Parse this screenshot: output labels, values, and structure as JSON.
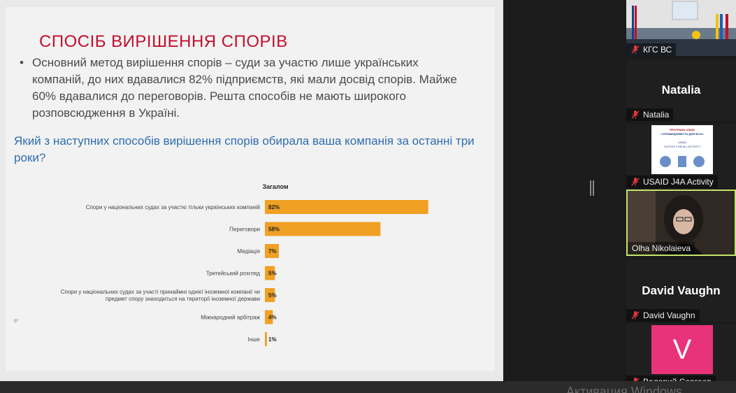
{
  "slide": {
    "title": "СПОСІБ ВИРІШЕННЯ СПОРІВ",
    "bullet": "Основний метод вирішення спорів – суди за участю лише українських компаній, до них вдавалися 82% підприємств, які мали досвід спорів. Майже 60% вдавалися до переговорів. Решта способів не мають широкого розповсюдження в Україні.",
    "question": "Який з наступних способів вирішення спорів обирала ваша компанія за останні три роки?",
    "left_mark": "8*"
  },
  "chart_data": {
    "type": "bar",
    "orientation": "horizontal",
    "title": "Загалом",
    "categories": [
      "Спори у національних судах за участю тільки українських компаній",
      "Переговори",
      "Медіація",
      "Третейський розгляд",
      "Спори у національних судах за участі принаймні однієї іноземної компанії чи предмет спору знаходиться на території іноземної держави",
      "Міжнародний арбітраж",
      "Інше"
    ],
    "values": [
      82,
      58,
      7,
      5,
      5,
      4,
      1
    ],
    "value_labels": [
      "82%",
      "58%",
      "7%",
      "5%",
      "5%",
      "4%",
      "1%"
    ],
    "xlim": [
      0,
      100
    ],
    "bar_color": "#f0a023",
    "grid": false
  },
  "participants": [
    {
      "name": "КГС ВС",
      "muted": true,
      "video": "room"
    },
    {
      "name": "Natalia",
      "display": "Natalia",
      "muted": true,
      "video": "off"
    },
    {
      "name": "USAID J4A Activity",
      "muted": true,
      "video": "poster",
      "poster": {
        "line1": "ПРОГРАМА USAID",
        "line2": "«СПРАВЕДЛИВІСТЬ ДЛЯ ВСІХ»",
        "line3": "USAID",
        "line4": "JUSTICE FOR ALL ACTIVITY"
      }
    },
    {
      "name": "Olha Nikolaieva",
      "muted": false,
      "video": "camera",
      "active_speaker": true
    },
    {
      "name": "David Vaughn",
      "display": "David Vaughn",
      "muted": true,
      "video": "off"
    },
    {
      "name": "Валерий Сергеев",
      "muted": true,
      "video": "avatar",
      "avatar_letter": "V",
      "avatar_color": "#e8337a"
    }
  ],
  "watermark": "Активация Windows",
  "colors": {
    "title_red": "#c0102e",
    "question_blue": "#2e6db0",
    "speaker_border": "#c5e36b",
    "mic_muted": "#e23b3b"
  }
}
